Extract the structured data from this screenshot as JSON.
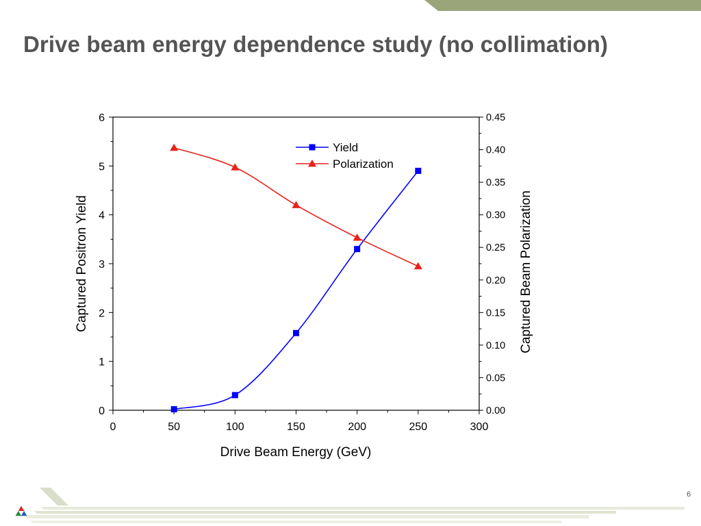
{
  "slide": {
    "title": "Drive beam energy dependence study (no collimation)",
    "page_number": "6"
  },
  "colors": {
    "accent_band": "#9aa57a",
    "yield": "#0000ff",
    "polarization": "#e8231b"
  },
  "chart_data": {
    "type": "line",
    "xlabel": "Drive Beam Energy (GeV)",
    "ylabel": "Captured Positron Yield",
    "y2label": "Captured Beam Polarization",
    "xlim": [
      0,
      300
    ],
    "ylim": [
      0,
      6
    ],
    "y2lim": [
      0,
      0.45
    ],
    "x_ticks": [
      "0",
      "50",
      "100",
      "150",
      "200",
      "250",
      "300"
    ],
    "y_ticks": [
      "0",
      "1",
      "2",
      "3",
      "4",
      "5",
      "6"
    ],
    "y2_ticks": [
      "0.00",
      "0.05",
      "0.10",
      "0.15",
      "0.20",
      "0.25",
      "0.30",
      "0.35",
      "0.40",
      "0.45"
    ],
    "legend_position": "top-right",
    "series": [
      {
        "name": "Yield",
        "axis": "left",
        "marker": "square",
        "color": "#0000ff",
        "x": [
          50,
          100,
          150,
          200,
          250
        ],
        "y": [
          0.02,
          0.31,
          1.58,
          3.3,
          4.9
        ]
      },
      {
        "name": "Polarization",
        "axis": "right",
        "marker": "triangle",
        "color": "#e8231b",
        "x": [
          50,
          100,
          150,
          200,
          250
        ],
        "y": [
          0.403,
          0.373,
          0.315,
          0.265,
          0.221
        ]
      }
    ]
  }
}
